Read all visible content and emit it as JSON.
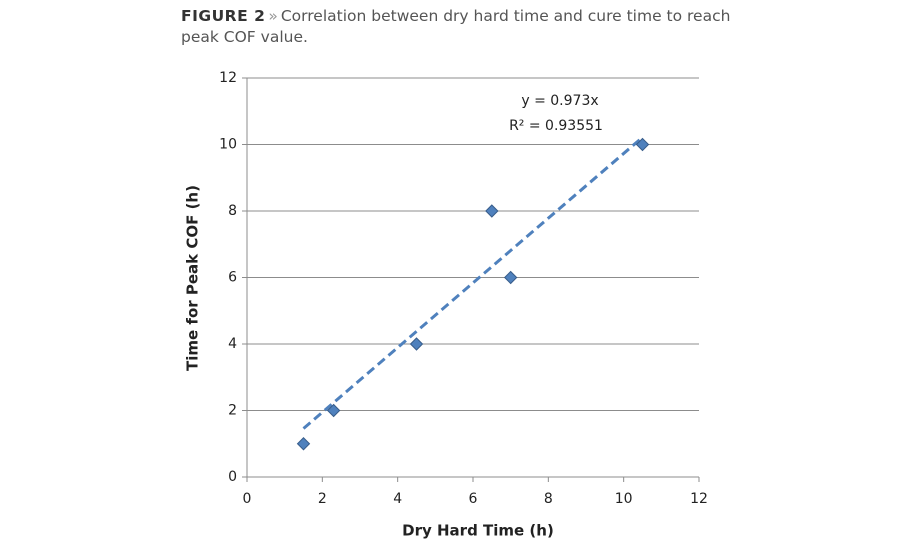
{
  "chart_data": {
    "type": "scatter",
    "figure_label": "FIGURE 2",
    "title_separator": "»",
    "title": "Correlation between dry hard time and cure time to reach peak COF value.",
    "xlabel": "Dry Hard Time (h)",
    "ylabel": "Time for Peak COF (h)",
    "series": [
      {
        "color": "#4f81bd",
        "x": [
          1.5,
          2.3,
          4.5,
          6.5,
          7,
          10.5
        ],
        "values": [
          1,
          2,
          4,
          8,
          6,
          10
        ]
      }
    ],
    "trendline": {
      "type": "linear-through-origin",
      "equation": "y = 0.973x",
      "r_squared": "R² = 0.93551"
    },
    "xlim": [
      0,
      12
    ],
    "xticks": [
      0,
      2,
      4,
      6,
      8,
      10,
      12
    ],
    "ylim": [
      0,
      12
    ],
    "yticks": [
      0,
      2,
      4,
      6,
      8,
      10,
      12
    ],
    "grid": true
  }
}
